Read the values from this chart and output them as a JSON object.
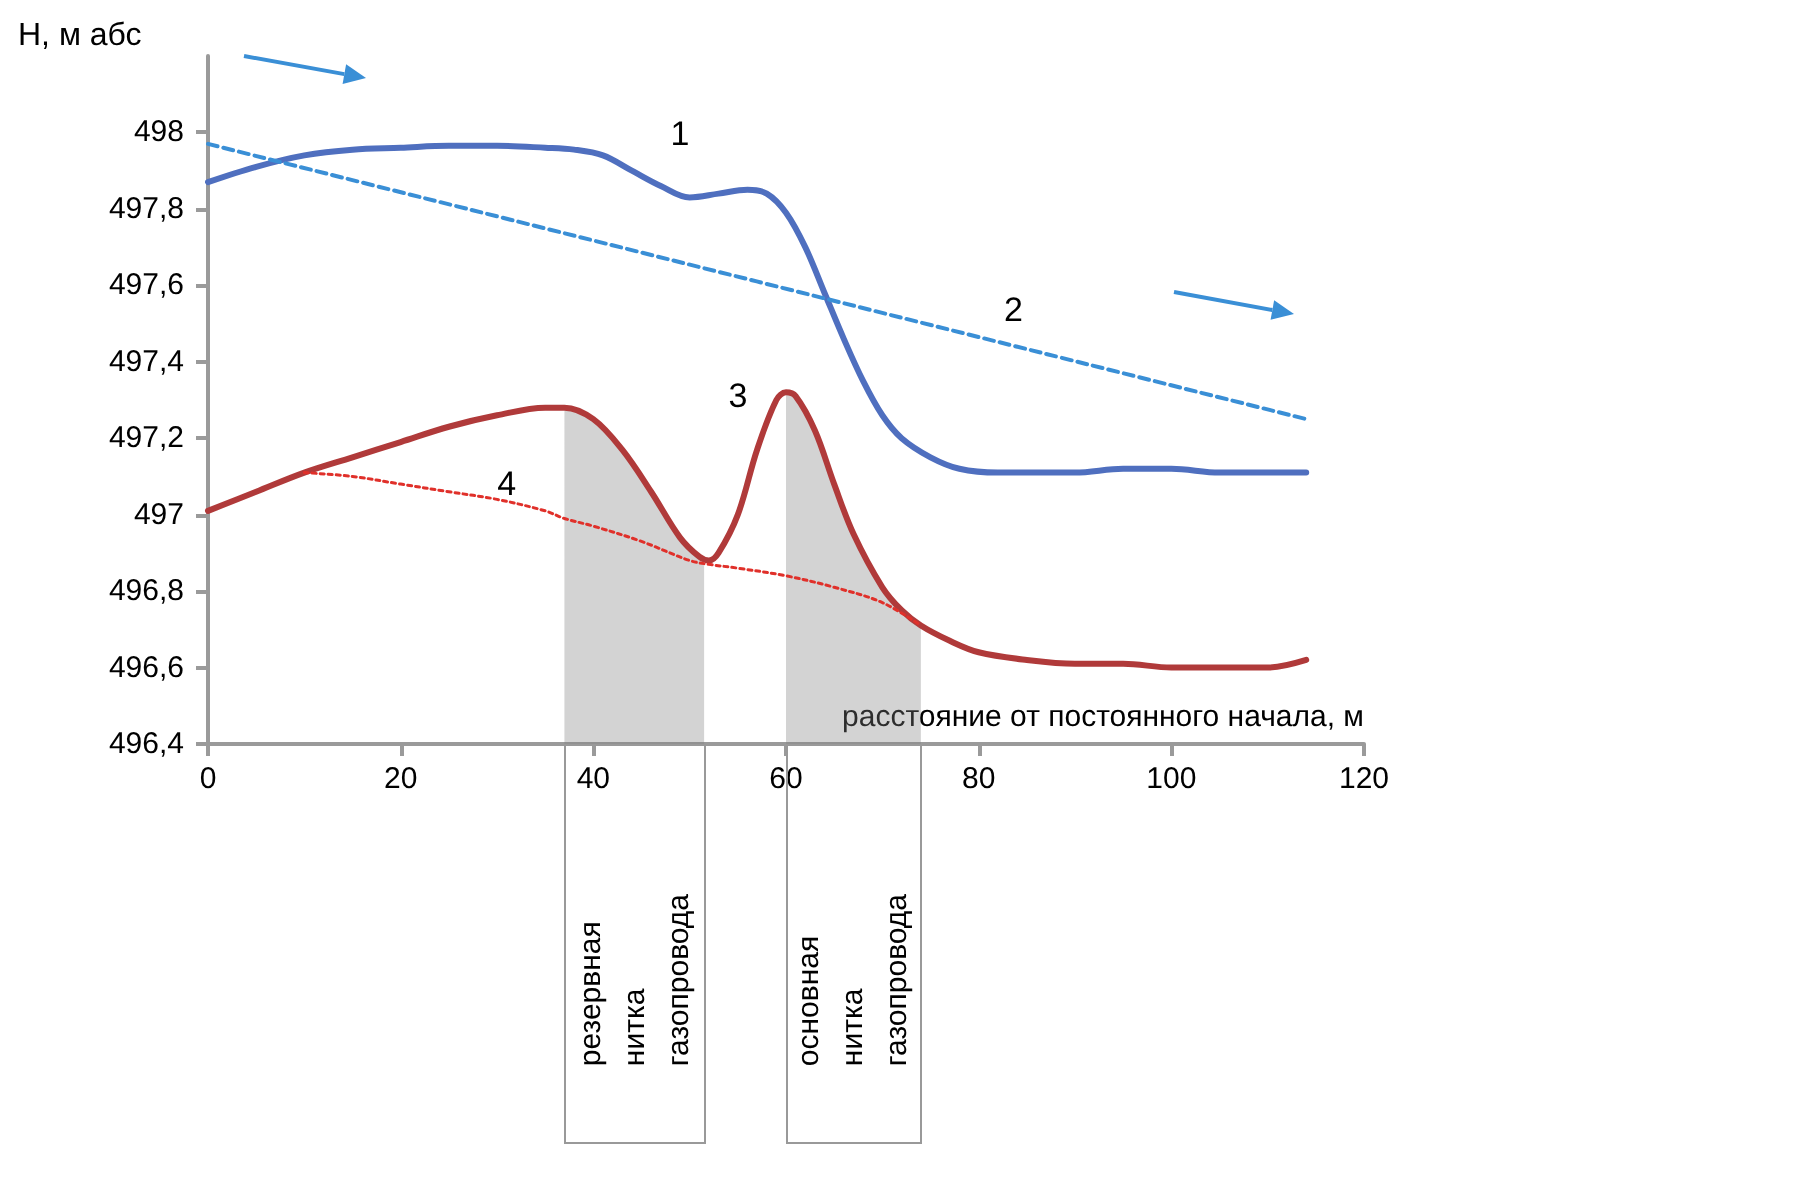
{
  "chart_data": {
    "type": "line",
    "ylabel": "Н, м абс",
    "xlabel": "расстояние от постоянного начала, м",
    "xlim": [
      0,
      120
    ],
    "xticks": [
      0,
      20,
      40,
      60,
      80,
      100,
      120
    ],
    "ylim": [
      496.4,
      498.2
    ],
    "yticks": [
      {
        "value": 496.4,
        "label": "496,4"
      },
      {
        "value": 496.6,
        "label": "496,6"
      },
      {
        "value": 496.8,
        "label": "496,8"
      },
      497,
      {
        "value": 497.2,
        "label": "497,2"
      },
      {
        "value": 497.4,
        "label": "497,4"
      },
      {
        "value": 497.6,
        "label": "497,6"
      },
      {
        "value": 497.8,
        "label": "497,8"
      },
      498
    ],
    "grid": false,
    "legend": false,
    "marker": "none",
    "series": [
      {
        "name": "1",
        "color": "#4f6fbf",
        "line_style": "solid",
        "x": [
          0,
          5,
          10,
          15,
          20,
          25,
          30,
          35,
          38,
          41,
          44,
          47,
          50,
          53,
          56,
          58,
          60,
          62,
          64,
          66,
          68,
          70,
          72,
          75,
          78,
          82,
          86,
          90,
          95,
          100,
          105,
          110,
          114
        ],
        "values": [
          497.87,
          497.91,
          497.94,
          497.955,
          497.96,
          497.965,
          497.965,
          497.96,
          497.955,
          497.94,
          497.9,
          497.86,
          497.83,
          497.84,
          497.85,
          497.84,
          497.79,
          497.7,
          497.58,
          497.46,
          497.35,
          497.26,
          497.2,
          497.15,
          497.12,
          497.11,
          497.11,
          497.11,
          497.12,
          497.12,
          497.11,
          497.11,
          497.11
        ]
      },
      {
        "name": "2",
        "color": "#3a8fd6",
        "line_style": "dashed",
        "x": [
          0,
          114
        ],
        "values": [
          497.97,
          497.25
        ]
      },
      {
        "name": "3",
        "color": "#b03a3a",
        "line_style": "solid",
        "x": [
          0,
          5,
          10,
          15,
          20,
          25,
          30,
          35,
          37,
          40,
          43,
          46,
          49,
          51,
          52,
          53,
          55,
          57,
          59,
          60,
          61,
          63,
          65,
          67,
          70,
          72,
          74,
          77,
          80,
          85,
          90,
          95,
          100,
          105,
          110,
          114
        ],
        "values": [
          497.01,
          497.06,
          497.11,
          497.15,
          497.19,
          497.23,
          497.26,
          497.28,
          497.28,
          497.25,
          497.17,
          497.06,
          496.94,
          496.89,
          496.88,
          496.9,
          497.0,
          497.17,
          497.3,
          497.32,
          497.31,
          497.22,
          497.08,
          496.95,
          496.81,
          496.75,
          496.71,
          496.67,
          496.64,
          496.62,
          496.61,
          496.61,
          496.6,
          496.6,
          496.6,
          496.62
        ]
      },
      {
        "name": "4",
        "color": "#e0302a",
        "line_style": "dotted",
        "x": [
          10,
          15,
          20,
          25,
          30,
          35,
          37,
          40,
          45,
          50,
          52,
          55,
          60,
          65,
          70,
          74
        ],
        "values": [
          497.11,
          497.1,
          497.08,
          497.06,
          497.04,
          497.01,
          496.99,
          496.97,
          496.93,
          496.88,
          496.87,
          496.86,
          496.84,
          496.81,
          496.77,
          496.71
        ]
      },
      {
        "type": "area",
        "color": "#808080",
        "x": [
          37,
          40,
          43,
          46,
          49,
          51,
          51.5
        ],
        "values": [
          497.28,
          497.25,
          497.17,
          497.06,
          496.94,
          496.89,
          496.885
        ]
      },
      {
        "type": "area",
        "color": "#808080",
        "x": [
          60,
          61,
          63,
          65,
          67,
          70,
          72,
          74
        ],
        "values": [
          497.32,
          497.31,
          497.22,
          497.08,
          496.95,
          496.81,
          496.75,
          496.71
        ]
      }
    ],
    "annotations": [
      "резервная нитка газопровода",
      "основная нитка газопровода"
    ]
  }
}
